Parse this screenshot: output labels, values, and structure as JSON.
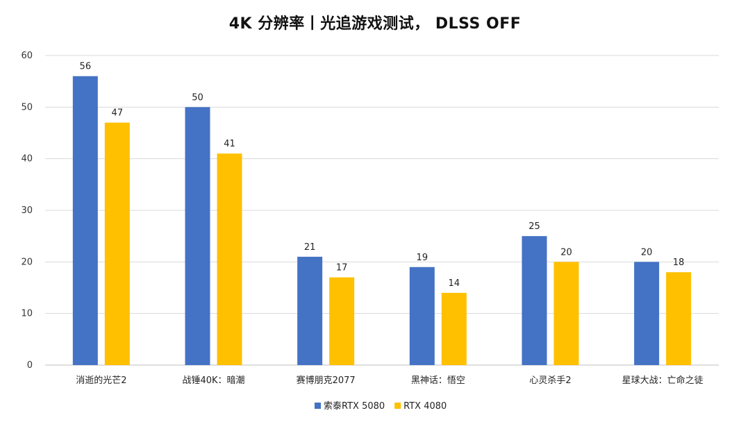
{
  "chart_data": {
    "type": "bar",
    "title": "4K 分辨率丨光追游戏测试， DLSS OFF",
    "xlabel": "",
    "ylabel": "",
    "ylim": [
      0,
      60
    ],
    "yticks": [
      0,
      10,
      20,
      30,
      40,
      50,
      60
    ],
    "grid": true,
    "legend_position": "bottom",
    "categories": [
      "消逝的光芒2",
      "战锤40K：暗潮",
      "赛博朋克2077",
      "黑神话：悟空",
      "心灵杀手2",
      "星球大战：亡命之徒"
    ],
    "series": [
      {
        "name": "索泰RTX 5080",
        "color": "#4472C4",
        "values": [
          56,
          50,
          21,
          19,
          25,
          20
        ]
      },
      {
        "name": "RTX 4080",
        "color": "#FFC000",
        "values": [
          47,
          41,
          17,
          14,
          20,
          18
        ]
      }
    ]
  }
}
